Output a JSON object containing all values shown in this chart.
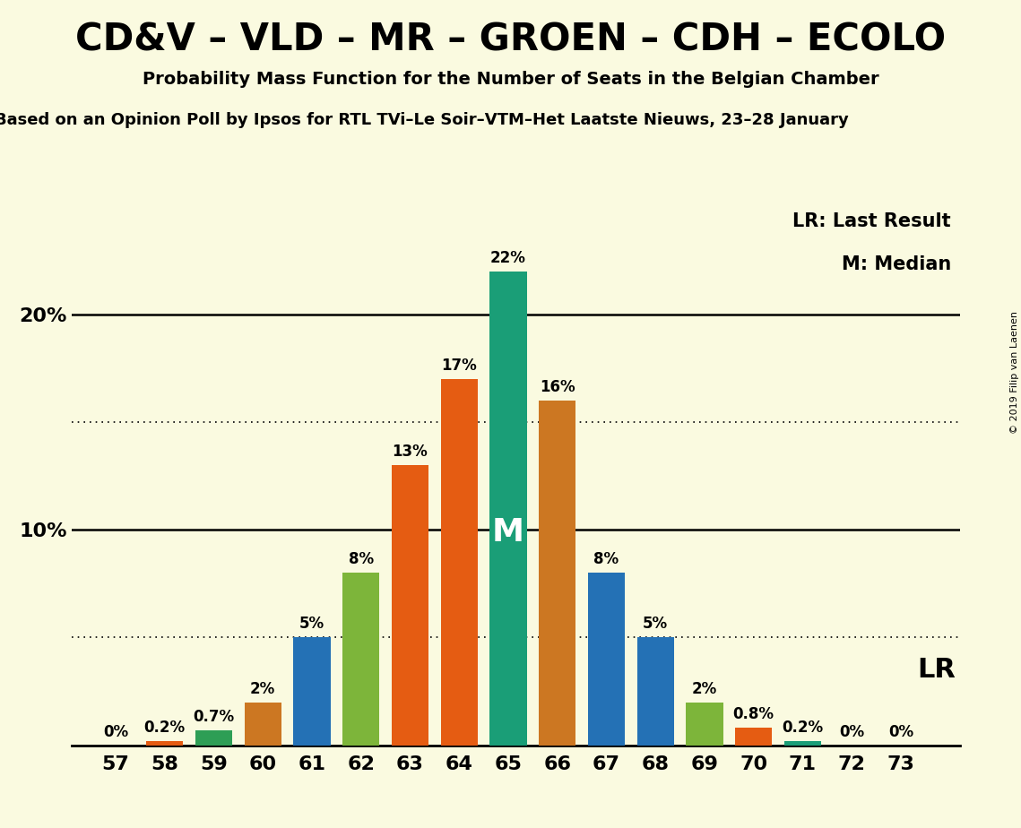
{
  "title": "CD&V – VLD – MR – GROEN – CDH – ECOLO",
  "subtitle": "Probability Mass Function for the Number of Seats in the Belgian Chamber",
  "subtitle2": "Based on an Opinion Poll by Ipsos for RTL TVi–Le Soir–VTM–Het Laatste Nieuws, 23–28 January",
  "seats": [
    57,
    58,
    59,
    60,
    61,
    62,
    63,
    64,
    65,
    66,
    67,
    68,
    69,
    70,
    71,
    72,
    73
  ],
  "values": [
    0.0,
    0.2,
    0.7,
    2.0,
    5.0,
    8.0,
    13.0,
    17.0,
    22.0,
    16.0,
    8.0,
    5.0,
    2.0,
    0.8,
    0.2,
    0.0,
    0.0
  ],
  "colors": [
    "#2471b5",
    "#e55c12",
    "#2e9e55",
    "#cc7722",
    "#2471b5",
    "#7db53a",
    "#e55c12",
    "#e55c12",
    "#1a9e77",
    "#cc7722",
    "#2471b5",
    "#2471b5",
    "#7db53a",
    "#e55c12",
    "#1a9e77",
    "#2471b5",
    "#2e9e55"
  ],
  "median_seat": 65,
  "background_color": "#fafae0",
  "ylim": [
    0,
    25
  ],
  "dotted_lines": [
    5.0,
    15.0
  ],
  "solid_lines": [
    10.0,
    20.0
  ],
  "copyright": "© 2019 Filip van Laenen",
  "label_fontsize": 12,
  "tick_fontsize": 16,
  "legend_fontsize": 15
}
